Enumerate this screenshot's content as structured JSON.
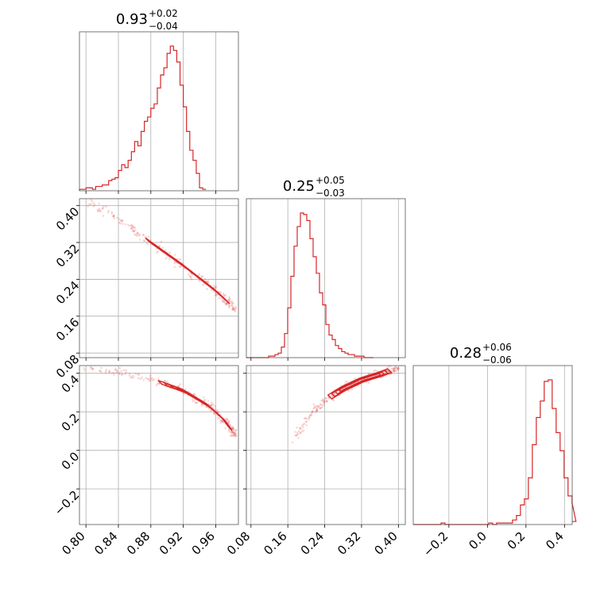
{
  "chart_data": {
    "type": "corner",
    "color": "#d62728",
    "parameters": [
      {
        "title": {
          "median": "0.93",
          "plus": "+0.02",
          "minus": "−0.04"
        },
        "range": [
          0.792,
          0.988
        ],
        "ticks": [
          0.8,
          0.84,
          0.88,
          0.92,
          0.96
        ],
        "tick_labels": [
          "0.80",
          "0.84",
          "0.88",
          "0.92",
          "0.96"
        ],
        "histogram": {
          "bin_start": 0.792,
          "bin_width": 0.004,
          "counts": [
            1,
            1,
            2,
            2,
            1,
            3,
            3,
            4,
            4,
            7,
            8,
            9,
            14,
            18,
            16,
            21,
            27,
            34,
            31,
            41,
            48,
            51,
            57,
            60,
            71,
            80,
            85,
            95,
            100,
            97,
            89,
            73,
            58,
            41,
            28,
            21,
            12,
            2,
            1
          ]
        }
      },
      {
        "title": {
          "median": "0.25",
          "plus": "+0.05",
          "minus": "−0.03"
        },
        "range": [
          0.07,
          0.415
        ],
        "ticks": [
          0.08,
          0.16,
          0.24,
          0.32,
          0.4
        ],
        "tick_labels": [
          "0.08",
          "0.16",
          "0.24",
          "0.32",
          "0.40"
        ],
        "histogram": {
          "bin_start": 0.07,
          "bin_width": 0.0069,
          "counts": [
            0,
            0,
            0,
            0,
            0,
            0,
            0,
            1,
            1,
            2,
            3,
            7,
            16,
            33,
            54,
            74,
            87,
            96,
            95,
            91,
            79,
            67,
            56,
            43,
            35,
            22,
            15,
            12,
            8,
            6,
            4,
            3,
            2,
            2,
            1,
            1,
            1,
            0,
            0,
            0
          ]
        }
      },
      {
        "title": {
          "median": "0.28",
          "plus": "+0.06",
          "minus": "−0.06"
        },
        "range": [
          -0.385,
          0.44
        ],
        "ticks": [
          -0.2,
          0.0,
          0.2,
          0.4
        ],
        "tick_labels": [
          "−0.2",
          "0.0",
          "0.2",
          "0.4"
        ],
        "histogram": {
          "bin_start": -0.385,
          "bin_width": 0.0206,
          "counts": [
            0,
            0,
            0,
            0,
            0,
            0,
            0,
            1,
            0,
            0,
            0,
            0,
            0,
            0,
            0,
            0,
            0,
            0,
            0,
            1,
            0,
            1,
            1,
            1,
            1,
            3,
            6,
            13,
            17,
            31,
            53,
            71,
            82,
            95,
            96,
            77,
            61,
            49,
            31,
            19,
            14,
            2
          ]
        }
      }
    ],
    "pairs": [
      {
        "x": 0,
        "y": 1,
        "curve": [
          [
            0.8,
            0.41
          ],
          [
            0.84,
            0.37
          ],
          [
            0.88,
            0.32
          ],
          [
            0.92,
            0.27
          ],
          [
            0.96,
            0.215
          ],
          [
            0.985,
            0.175
          ]
        ]
      },
      {
        "x": 0,
        "y": 2,
        "curve": [
          [
            0.8,
            0.43
          ],
          [
            0.84,
            0.405
          ],
          [
            0.88,
            0.37
          ],
          [
            0.92,
            0.31
          ],
          [
            0.95,
            0.235
          ],
          [
            0.97,
            0.16
          ],
          [
            0.985,
            0.07
          ]
        ]
      },
      {
        "x": 1,
        "y": 2,
        "curve": [
          [
            0.17,
            0.04
          ],
          [
            0.2,
            0.16
          ],
          [
            0.24,
            0.26
          ],
          [
            0.28,
            0.32
          ],
          [
            0.32,
            0.365
          ],
          [
            0.36,
            0.395
          ],
          [
            0.4,
            0.43
          ]
        ]
      }
    ]
  }
}
